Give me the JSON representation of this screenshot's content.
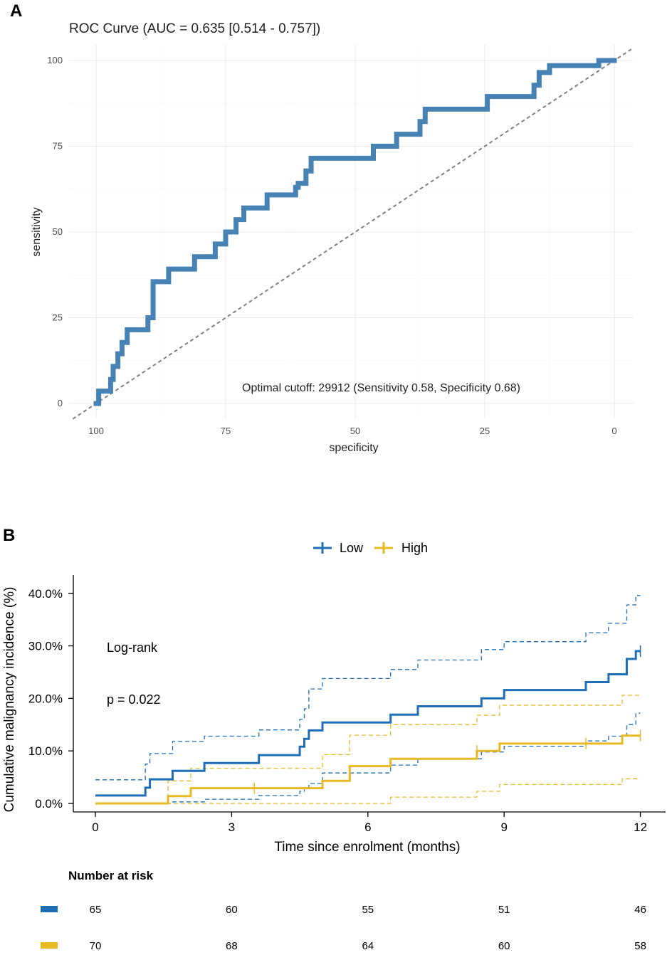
{
  "colors": {
    "roc_line": "#4682B4",
    "diagonal": "#808080",
    "grid": "#EBEBEB",
    "low": "#1E6FB8",
    "high": "#E8B923",
    "axis": "#000000"
  },
  "chart_data": [
    {
      "panel": "A",
      "type": "line",
      "title": "ROC Curve (AUC = 0.635 [0.514 - 0.757])",
      "xlabel": "specificity",
      "ylabel": "sensitivity",
      "xlim": [
        100,
        0
      ],
      "ylim": [
        0,
        100
      ],
      "x_ticks": [
        100,
        75,
        50,
        25,
        0
      ],
      "y_ticks": [
        0,
        25,
        50,
        75,
        100
      ],
      "grid": true,
      "annotation": "Optimal cutoff: 29912 (Sensitivity 0.58, Specificity 0.68)",
      "series": [
        {
          "name": "ROC",
          "specificity": [
            100,
            99.5,
            99.5,
            97.2,
            97.2,
            96.7,
            96.7,
            95.8,
            95.8,
            95,
            95,
            94,
            94,
            90,
            90,
            89,
            89,
            86,
            86,
            81,
            81,
            77,
            77,
            75,
            75,
            73,
            73,
            71.5,
            71.5,
            67,
            67,
            61.5,
            61.5,
            61,
            61,
            59.5,
            59.5,
            58.5,
            58.5,
            46.5,
            46.5,
            42,
            42,
            37.5,
            37.5,
            36.5,
            36.5,
            24.5,
            24.5,
            15.5,
            15.5,
            14.5,
            14.5,
            12.5,
            12.5,
            3,
            3,
            2,
            2,
            0
          ],
          "sensitivity": [
            0,
            0,
            3.6,
            3.6,
            7,
            7,
            10.8,
            10.8,
            14.5,
            14.5,
            17.8,
            17.8,
            21.5,
            21.5,
            25,
            25,
            35.5,
            35.5,
            39.2,
            39.2,
            42.8,
            42.8,
            46.5,
            46.5,
            50,
            50,
            53.6,
            53.6,
            57,
            57,
            60.8,
            60.8,
            63,
            63,
            64.2,
            64.2,
            67.8,
            67.8,
            71.5,
            71.5,
            75,
            75,
            78.5,
            78.5,
            82.2,
            82.2,
            85.8,
            85.8,
            89.5,
            89.5,
            92.8,
            92.8,
            96.5,
            96.5,
            98.5,
            98.5,
            100,
            100,
            100,
            100
          ]
        },
        {
          "name": "diagonal",
          "specificity": [
            104.5,
            -3.5
          ],
          "sensitivity": [
            -4.5,
            103.5
          ]
        }
      ]
    },
    {
      "panel": "B",
      "type": "line",
      "xlabel": "Time since enrolment (months)",
      "ylabel": "Cumulative malignancy incidence (%)",
      "xlim": [
        0,
        12
      ],
      "ylim": [
        0,
        40
      ],
      "x_ticks": [
        0,
        3,
        6,
        9,
        12
      ],
      "y_ticks": [
        "0.0%",
        "10.0%",
        "20.0%",
        "30.0%",
        "40.0%"
      ],
      "legend": [
        "Low",
        "High"
      ],
      "legend_position": "top",
      "annotations": [
        "Log-rank",
        "p = 0.022"
      ],
      "series": [
        {
          "name": "Low",
          "kind": "estimate",
          "x": [
            0,
            1.1,
            1.2,
            1.7,
            2.4,
            3.6,
            4.5,
            4.6,
            4.7,
            5.0,
            6.5,
            7.1,
            8.5,
            9.0,
            10.8,
            11.3,
            11.7,
            11.9,
            12
          ],
          "y": [
            1.5,
            3.0,
            4.6,
            6.2,
            7.7,
            9.2,
            10.8,
            12.3,
            13.9,
            15.4,
            16.9,
            18.5,
            20.0,
            21.6,
            23.1,
            24.6,
            27.5,
            29.0,
            29.0
          ]
        },
        {
          "name": "Low",
          "kind": "ci_upper",
          "x": [
            0,
            1.1,
            1.2,
            1.7,
            2.4,
            3.6,
            4.5,
            4.6,
            4.7,
            5.0,
            6.5,
            7.1,
            8.5,
            9.0,
            10.8,
            11.3,
            11.7,
            11.9,
            12
          ],
          "y": [
            4.5,
            7.5,
            9.5,
            11.8,
            12.8,
            14.0,
            16.0,
            18.0,
            21.8,
            23.8,
            25.5,
            27.3,
            29.3,
            30.8,
            32.5,
            34.3,
            37.8,
            39.6,
            39.6
          ]
        },
        {
          "name": "Low",
          "kind": "ci_lower",
          "x": [
            0,
            1.1,
            1.2,
            1.7,
            2.4,
            3.6,
            4.5,
            4.6,
            4.7,
            5.0,
            6.5,
            7.1,
            8.5,
            9.0,
            10.8,
            11.3,
            11.7,
            11.9,
            12
          ],
          "y": [
            0,
            0,
            0,
            0.3,
            0.8,
            1.5,
            2.3,
            3.0,
            3.8,
            5.8,
            7.3,
            8.5,
            9.8,
            10.9,
            11.9,
            12.8,
            15.0,
            17.2,
            17.2
          ]
        },
        {
          "name": "High",
          "kind": "estimate",
          "x": [
            0,
            1.6,
            2.1,
            4.5,
            5.0,
            5.6,
            6.5,
            7.1,
            8.4,
            8.9,
            11.3,
            11.6,
            12
          ],
          "y": [
            0,
            1.4,
            2.9,
            2.9,
            4.3,
            7.1,
            8.5,
            8.5,
            10.0,
            11.4,
            11.4,
            12.9,
            12.9
          ]
        },
        {
          "name": "High",
          "kind": "ci_upper",
          "x": [
            0,
            1.6,
            2.1,
            4.5,
            5.0,
            5.6,
            6.5,
            7.1,
            8.4,
            8.9,
            11.3,
            11.6,
            12
          ],
          "y": [
            0,
            4.3,
            6.7,
            6.7,
            9.3,
            13.0,
            15.0,
            15.0,
            16.8,
            18.7,
            18.7,
            20.6,
            20.6
          ]
        },
        {
          "name": "High",
          "kind": "ci_lower",
          "x": [
            0,
            1.6,
            2.1,
            4.5,
            5.0,
            5.6,
            6.5,
            7.1,
            8.4,
            8.9,
            11.3,
            11.6,
            12
          ],
          "y": [
            0,
            0,
            0,
            0,
            0,
            0,
            1.2,
            1.2,
            2.3,
            3.6,
            3.6,
            4.7,
            4.7
          ]
        }
      ],
      "censor_marks": [
        {
          "name": "Low",
          "x": [
            12
          ],
          "y": [
            29.0
          ]
        },
        {
          "name": "High",
          "x": [
            3.5,
            8.4,
            10.8,
            12
          ],
          "y": [
            2.9,
            10.0,
            11.4,
            12.9
          ]
        }
      ],
      "risk_table": {
        "title": "Number at risk",
        "times": [
          0,
          3,
          6,
          9,
          12
        ],
        "rows": [
          {
            "name": "Low",
            "values": [
              65,
              60,
              55,
              51,
              46
            ]
          },
          {
            "name": "High",
            "values": [
              70,
              68,
              64,
              60,
              58
            ]
          }
        ]
      }
    }
  ],
  "panel_labels": [
    "A",
    "B"
  ]
}
